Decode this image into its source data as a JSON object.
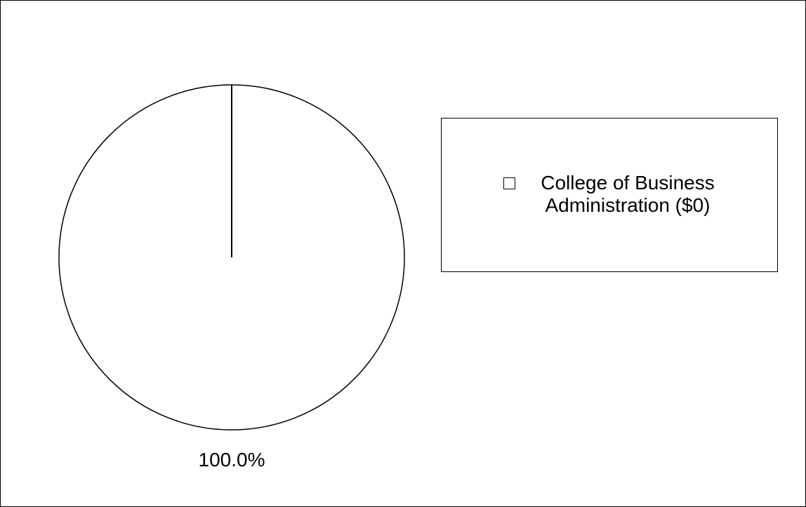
{
  "chart_data": {
    "type": "pie",
    "title": "",
    "slices": [
      {
        "label": "College of Business Administration ($0)",
        "value": 100.0,
        "percent_label": "100.0%",
        "color": "#ffffff"
      }
    ],
    "legend_placement": "right",
    "border_color": "#000000"
  }
}
